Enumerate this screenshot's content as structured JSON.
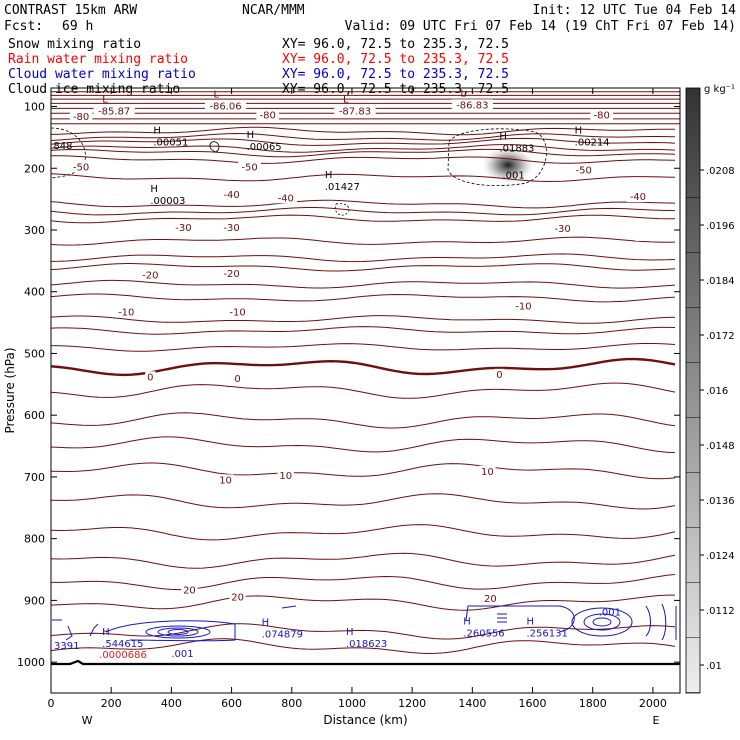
{
  "header": {
    "model": "CONTRAST 15km ARW",
    "center": "NCAR/MMM",
    "init": "Init: 12 UTC Tue 04 Feb 14",
    "fcst_label": "Fcst:",
    "fcst_value": "69 h",
    "valid": "Valid: 09 UTC Fri 07 Feb 14 (19 ChT Fri 07 Feb 14)",
    "xy": "XY=  96.0, 72.5 to 235.3, 72.5"
  },
  "fields": [
    {
      "name": "Snow mixing ratio",
      "color": "#000000"
    },
    {
      "name": "Rain water mixing ratio",
      "color": "#ff0000"
    },
    {
      "name": "Cloud water mixing ratio",
      "color": "#0000cc"
    },
    {
      "name": "Cloud ice mixing ratio",
      "color": "#000000"
    }
  ],
  "colors": {
    "temperature": "#6e0f0f",
    "cloud_water": "#1515c8",
    "rain": "#e02020",
    "ice": "#000000"
  },
  "chart_data": {
    "type": "contour",
    "xlabel": "Distance (km)",
    "ylabel": "Pressure (hPa)",
    "xlim": [
      0,
      2090
    ],
    "ylim": [
      1050,
      70
    ],
    "xticks": [
      0,
      200,
      400,
      600,
      800,
      1000,
      1200,
      1400,
      1600,
      1800,
      2000
    ],
    "yticks": [
      100,
      200,
      300,
      400,
      500,
      600,
      700,
      800,
      900,
      1000
    ],
    "x_end_labels": {
      "left": "W",
      "right": "E"
    },
    "colorbar": {
      "unit": "g kg⁻¹",
      "ticks": [
        ".0208",
        ".0196",
        ".0184",
        ".0172",
        ".016",
        ".0148",
        ".0136",
        ".0124",
        ".0112",
        ".01"
      ]
    },
    "temperature_contour_labels": [
      {
        "text": "-80",
        "x": 100,
        "p": 115
      },
      {
        "text": "-80",
        "x": 720,
        "p": 113
      },
      {
        "text": "-80",
        "x": 1830,
        "p": 113
      },
      {
        "text": "-50",
        "x": 100,
        "p": 197
      },
      {
        "text": "-50",
        "x": 660,
        "p": 197
      },
      {
        "text": "-50",
        "x": 1770,
        "p": 202
      },
      {
        "text": "-40",
        "x": 600,
        "p": 242
      },
      {
        "text": "-40",
        "x": 780,
        "p": 247
      },
      {
        "text": "-40",
        "x": 1950,
        "p": 245
      },
      {
        "text": "-30",
        "x": 440,
        "p": 295
      },
      {
        "text": "-30",
        "x": 600,
        "p": 295
      },
      {
        "text": "-30",
        "x": 1700,
        "p": 297
      },
      {
        "text": "-20",
        "x": 330,
        "p": 372
      },
      {
        "text": "-20",
        "x": 600,
        "p": 370
      },
      {
        "text": "-10",
        "x": 250,
        "p": 432
      },
      {
        "text": "-10",
        "x": 620,
        "p": 432
      },
      {
        "text": "-10",
        "x": 1570,
        "p": 422
      },
      {
        "text": "0",
        "x": 330,
        "p": 537
      },
      {
        "text": "0",
        "x": 620,
        "p": 540
      },
      {
        "text": "0",
        "x": 1490,
        "p": 533
      },
      {
        "text": "10",
        "x": 580,
        "p": 704
      },
      {
        "text": "10",
        "x": 780,
        "p": 697
      },
      {
        "text": "10",
        "x": 1450,
        "p": 690
      },
      {
        "text": "20",
        "x": 460,
        "p": 882
      },
      {
        "text": "20",
        "x": 620,
        "p": 894
      },
      {
        "text": "20",
        "x": 1460,
        "p": 896
      }
    ],
    "temperature_isolines_c": [
      -80,
      -50,
      -40,
      -30,
      -20,
      -10,
      0,
      10,
      20
    ],
    "lows": [
      {
        "text": "-85.87",
        "x": 210,
        "p": 100
      },
      {
        "text": "-86.06",
        "x": 580,
        "p": 92
      },
      {
        "text": "-87.83",
        "x": 1010,
        "p": 100
      },
      {
        "text": "-86.83",
        "x": 1400,
        "p": 90
      }
    ],
    "highs": [
      {
        "text": ".00051",
        "x": 340,
        "p": 160,
        "field": "ice"
      },
      {
        "text": ".00065",
        "x": 650,
        "p": 167,
        "field": "ice"
      },
      {
        "text": ".01883",
        "x": 1490,
        "p": 170,
        "field": "snow"
      },
      {
        "text": ".00214",
        "x": 1740,
        "p": 160,
        "field": "ice"
      },
      {
        "text": ".01427",
        "x": 910,
        "p": 232,
        "field": "ice"
      },
      {
        "text": ".00003",
        "x": 330,
        "p": 255,
        "field": "ice"
      },
      {
        "text": ".074879",
        "x": 700,
        "p": 957,
        "field": "cloud_water"
      },
      {
        "text": ".018623",
        "x": 980,
        "p": 972,
        "field": "cloud_water"
      },
      {
        "text": ".260556",
        "x": 1370,
        "p": 955,
        "field": "cloud_water"
      },
      {
        "text": ".256131",
        "x": 1580,
        "p": 955,
        "field": "cloud_water"
      },
      {
        "text": ".544615",
        "x": 170,
        "p": 972,
        "field": "cloud_water"
      }
    ],
    "other_labels": [
      {
        "text": ".001",
        "x": 1500,
        "p": 210,
        "field": "ice"
      },
      {
        "text": ".001",
        "x": 400,
        "p": 985,
        "field": "cloud_water"
      },
      {
        "text": ".001",
        "x": 1820,
        "p": 918,
        "field": "cloud_water"
      },
      {
        "text": "3391",
        "x": 10,
        "p": 972,
        "field": "cloud_water"
      },
      {
        "text": ".0000686",
        "x": 160,
        "p": 987,
        "field": "rain"
      },
      {
        "text": "848",
        "x": 8,
        "p": 162,
        "field": "ice"
      }
    ]
  }
}
